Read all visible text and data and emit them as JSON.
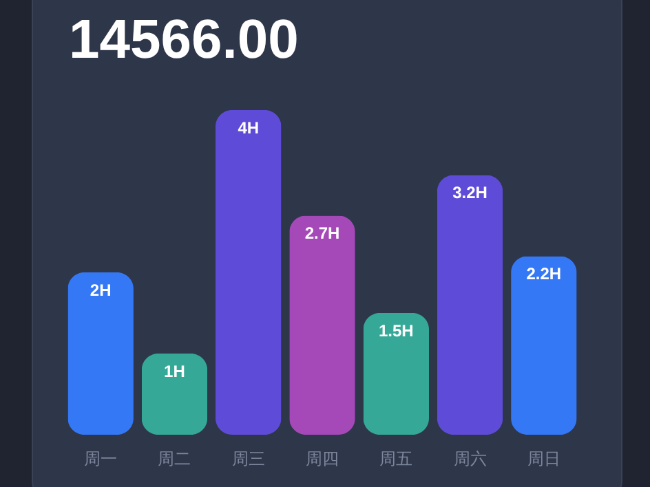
{
  "chart_data": {
    "type": "bar",
    "title": "14566.00",
    "categories": [
      "周一",
      "周二",
      "周三",
      "周四",
      "周五",
      "周六",
      "周日"
    ],
    "values": [
      2,
      1,
      4,
      2.7,
      1.5,
      3.2,
      2.2
    ],
    "colors": [
      "#3478f6",
      "#35a897",
      "#5e4bd8",
      "#a548b8",
      "#35a897",
      "#5e4bd8",
      "#3478f6"
    ],
    "value_labels": [
      "2H",
      "1H",
      "4H",
      "2.7H",
      "1.5H",
      "3.2H",
      "2.2H"
    ],
    "ylim": [
      0,
      4
    ],
    "tick_labels": "x"
  }
}
